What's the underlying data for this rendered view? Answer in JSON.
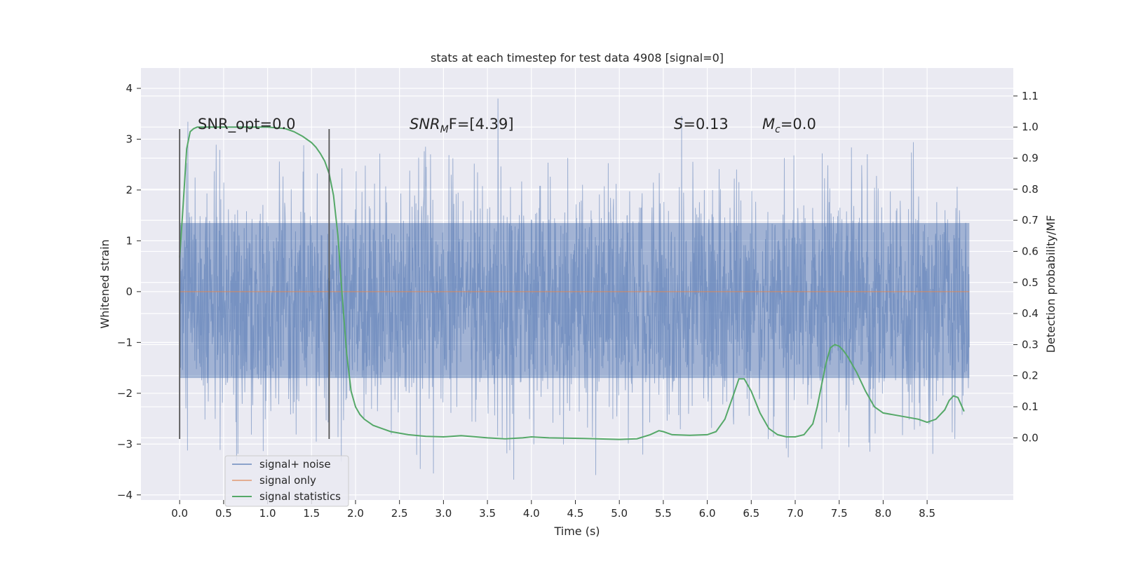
{
  "chart_data": {
    "type": "line",
    "title": "stats at each timestep for test data 4908 [signal=0]",
    "xlabel": "Time (s)",
    "ylabel": "Whitened strain",
    "y2label": "Detection probability/MF",
    "xlim": [
      -0.44,
      9.48
    ],
    "ylim": [
      -4.1,
      4.4
    ],
    "y2lim": [
      -0.2,
      1.19
    ],
    "x_ticks": [
      0.0,
      0.5,
      1.0,
      1.5,
      2.0,
      2.5,
      3.0,
      3.5,
      4.0,
      4.5,
      5.0,
      5.5,
      6.0,
      6.5,
      7.0,
      7.5,
      8.0,
      8.5
    ],
    "x_tick_labels": [
      "0.0",
      "0.5",
      "1.0",
      "1.5",
      "2.0",
      "2.5",
      "3.0",
      "3.5",
      "4.0",
      "4.5",
      "5.0",
      "5.5",
      "6.0",
      "6.5",
      "7.0",
      "7.5",
      "8.0",
      "8.5"
    ],
    "y_ticks": [
      -4,
      -3,
      -2,
      -1,
      0,
      1,
      2,
      3,
      4
    ],
    "y_tick_labels": [
      "−4",
      "−3",
      "−2",
      "−1",
      "0",
      "1",
      "2",
      "3",
      "4"
    ],
    "y2_ticks": [
      0.0,
      0.1,
      0.2,
      0.3,
      0.4,
      0.5,
      0.6,
      0.7,
      0.8,
      0.9,
      1.0,
      1.1
    ],
    "y2_tick_labels": [
      "0.0",
      "0.1",
      "0.2",
      "0.3",
      "0.4",
      "0.5",
      "0.6",
      "0.7",
      "0.8",
      "0.9",
      "1.0",
      "1.1"
    ],
    "grid": true,
    "legend_position": "lower-left",
    "annotations": {
      "snr_opt": "SNR_opt=0.0",
      "snr_mf_base": "SNR",
      "snr_mf_sub": "M",
      "snr_mf_rest": "F=[4.39]",
      "s_italic": "S",
      "s_rest": "=0.13",
      "mc_italic": "M",
      "mc_sub": "c",
      "mc_rest": "=0.0"
    },
    "vlines": {
      "x": [
        0.0,
        1.7
      ],
      "y_range": [
        -2.9,
        3.2
      ]
    },
    "noise": {
      "x_range": [
        0.0,
        8.98
      ],
      "typical_envelope": [
        -1.7,
        1.35
      ],
      "max_value": 4.02,
      "min_value": -3.75
    },
    "series": [
      {
        "name": "signal+ noise",
        "color": "#4c72b0",
        "axis": "left"
      },
      {
        "name": "signal only",
        "color": "#dd8452",
        "axis": "left",
        "x": [
          0.0,
          8.98
        ],
        "y": [
          0.0,
          0.0
        ]
      },
      {
        "name": "signal statistics",
        "color": "#55a868",
        "axis": "right",
        "x": [
          0.0,
          0.04,
          0.08,
          0.12,
          0.16,
          0.2,
          0.3,
          0.5,
          0.8,
          1.0,
          1.2,
          1.3,
          1.4,
          1.5,
          1.55,
          1.6,
          1.65,
          1.7,
          1.75,
          1.8,
          1.85,
          1.9,
          1.95,
          2.0,
          2.05,
          2.1,
          2.15,
          2.2,
          2.3,
          2.4,
          2.6,
          2.8,
          3.0,
          3.2,
          3.3,
          3.5,
          3.7,
          3.9,
          4.0,
          4.2,
          4.6,
          5.0,
          5.2,
          5.35,
          5.45,
          5.5,
          5.6,
          5.8,
          6.0,
          6.1,
          6.2,
          6.3,
          6.36,
          6.42,
          6.5,
          6.6,
          6.7,
          6.8,
          6.9,
          7.0,
          7.1,
          7.2,
          7.25,
          7.3,
          7.35,
          7.4,
          7.45,
          7.5,
          7.55,
          7.6,
          7.7,
          7.8,
          7.9,
          8.0,
          8.2,
          8.4,
          8.5,
          8.6,
          8.7,
          8.75,
          8.8,
          8.85,
          8.92
        ],
        "y": [
          0.58,
          0.75,
          0.93,
          0.985,
          0.995,
          1.0,
          1.0,
          1.0,
          1.0,
          1.0,
          0.995,
          0.985,
          0.97,
          0.95,
          0.935,
          0.915,
          0.89,
          0.85,
          0.78,
          0.65,
          0.45,
          0.27,
          0.15,
          0.1,
          0.075,
          0.06,
          0.05,
          0.04,
          0.03,
          0.02,
          0.01,
          0.005,
          0.003,
          0.007,
          0.005,
          0.0,
          -0.003,
          0.0,
          0.003,
          0.0,
          -0.002,
          -0.005,
          -0.003,
          0.01,
          0.023,
          0.02,
          0.01,
          0.008,
          0.01,
          0.02,
          0.06,
          0.14,
          0.19,
          0.19,
          0.15,
          0.08,
          0.03,
          0.01,
          0.003,
          0.003,
          0.01,
          0.045,
          0.1,
          0.17,
          0.24,
          0.29,
          0.3,
          0.295,
          0.28,
          0.26,
          0.21,
          0.15,
          0.1,
          0.08,
          0.07,
          0.06,
          0.05,
          0.06,
          0.09,
          0.12,
          0.135,
          0.13,
          0.085
        ]
      }
    ]
  }
}
